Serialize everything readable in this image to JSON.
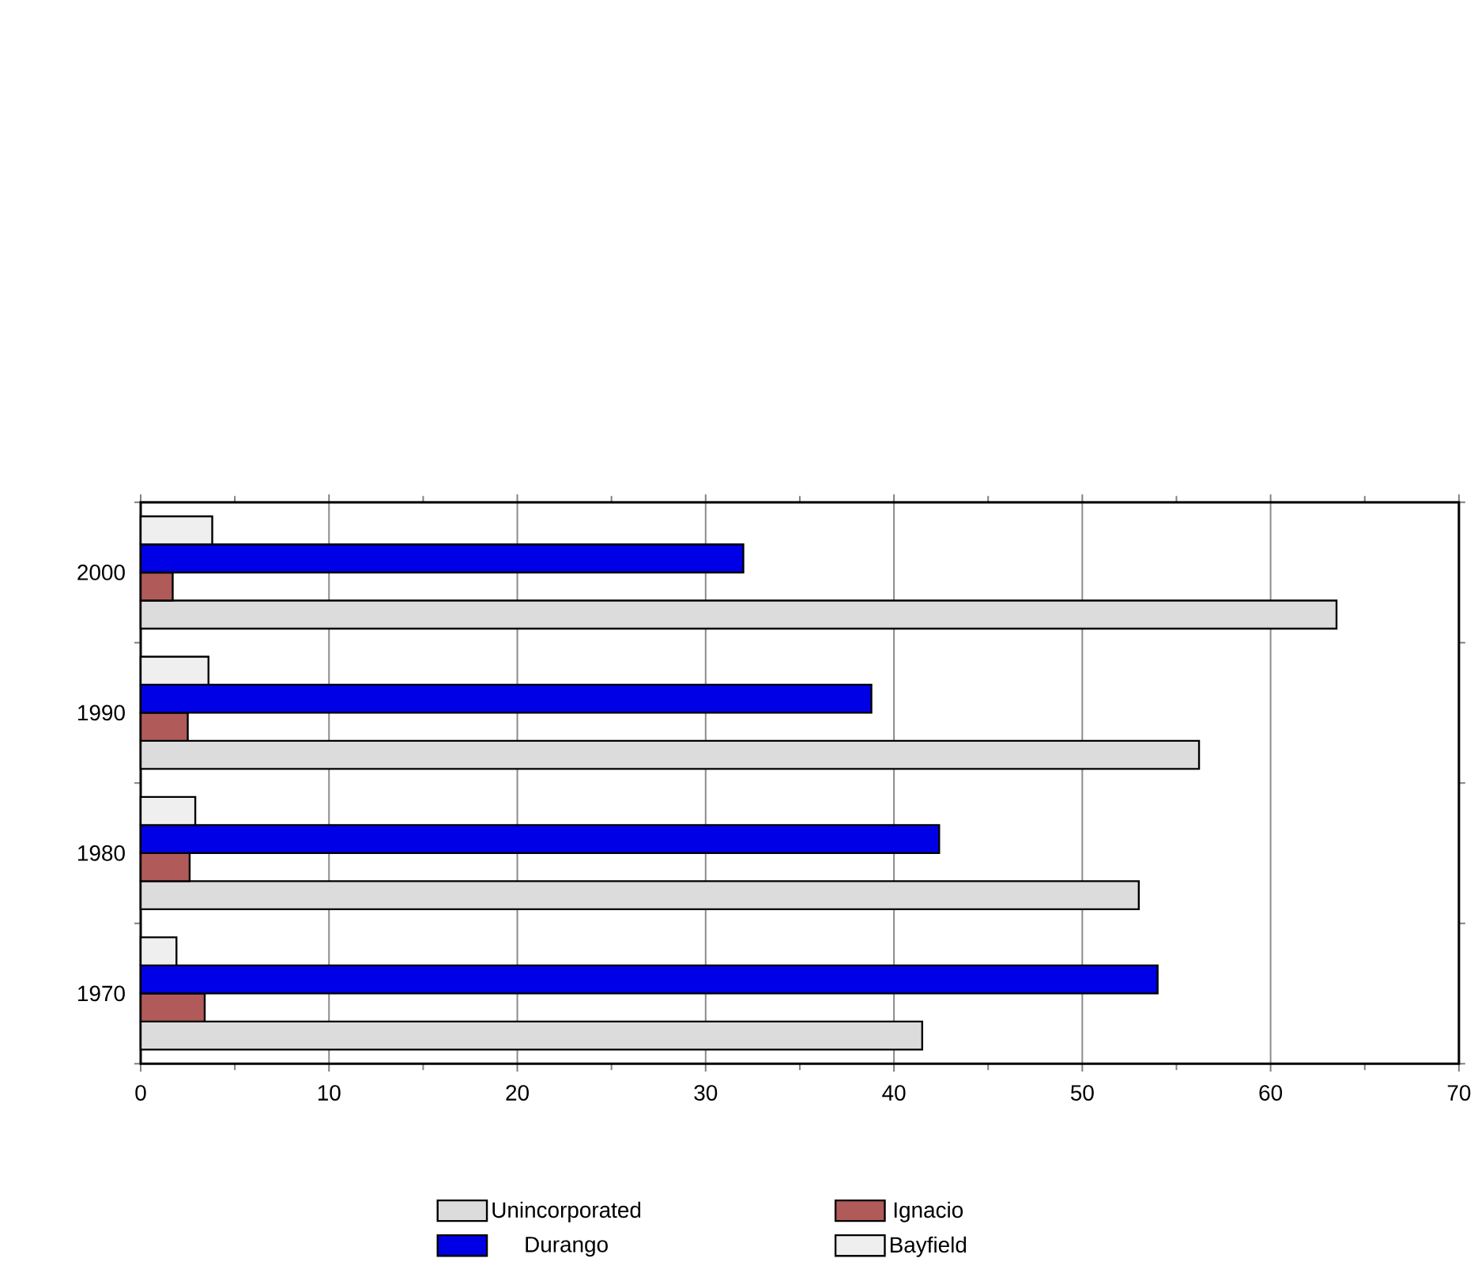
{
  "chart_data": {
    "type": "bar",
    "orientation": "horizontal",
    "categories": [
      "2000",
      "1990",
      "1980",
      "1970"
    ],
    "series": [
      {
        "name": "Unincorporated",
        "color": "#dcdcdc",
        "values": [
          63.5,
          56.2,
          53.0,
          41.5
        ]
      },
      {
        "name": "Ignacio",
        "color": "#b05a5a",
        "values": [
          1.7,
          2.5,
          2.6,
          3.4
        ]
      },
      {
        "name": "Durango",
        "color": "#0000e6",
        "values": [
          32.0,
          38.8,
          42.4,
          54.0
        ]
      },
      {
        "name": "Bayfield",
        "color": "#efefef",
        "values": [
          3.8,
          3.6,
          2.9,
          1.9
        ]
      }
    ],
    "xlim": [
      0,
      70
    ],
    "xticks": [
      0,
      10,
      20,
      30,
      40,
      50,
      60,
      70
    ],
    "grid": "x",
    "legend": "bottom"
  }
}
